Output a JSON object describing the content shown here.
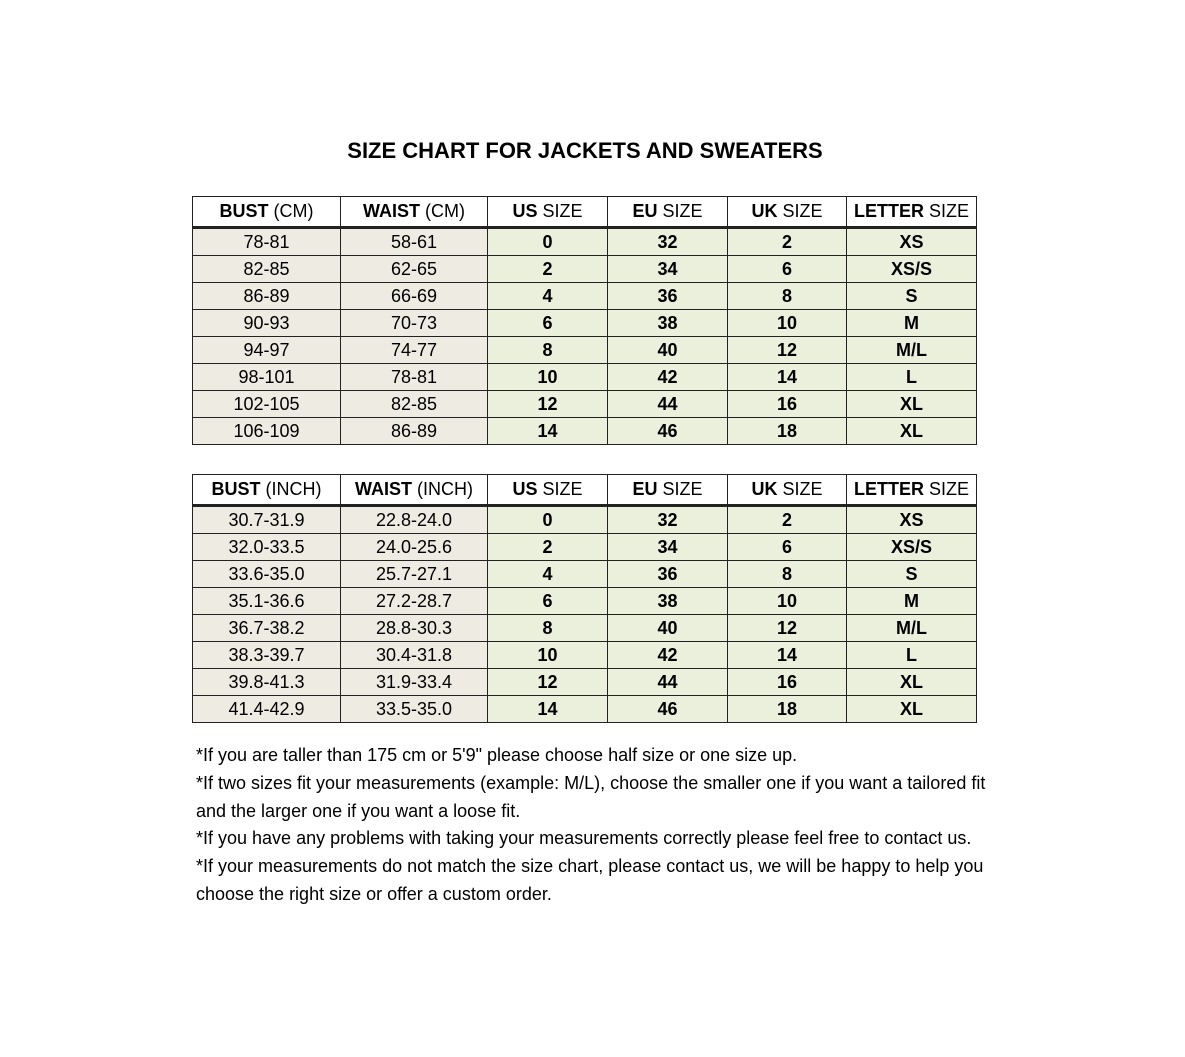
{
  "title": "SIZE CHART FOR JACKETS AND SWEATERS",
  "colors": {
    "measure_cell": "#eeebe2",
    "size_cell": "#ebf0dc"
  },
  "tables": [
    {
      "headers": [
        [
          "BUST",
          " (CM)"
        ],
        [
          "WAIST",
          " (CM)"
        ],
        [
          "US",
          " SIZE"
        ],
        [
          "EU",
          " SIZE"
        ],
        [
          "UK",
          " SIZE"
        ],
        [
          "LETTER",
          " SIZE"
        ]
      ],
      "rows": [
        [
          "78-81",
          "58-61",
          "0",
          "32",
          "2",
          "XS"
        ],
        [
          "82-85",
          "62-65",
          "2",
          "34",
          "6",
          "XS/S"
        ],
        [
          "86-89",
          "66-69",
          "4",
          "36",
          "8",
          "S"
        ],
        [
          "90-93",
          "70-73",
          "6",
          "38",
          "10",
          "M"
        ],
        [
          "94-97",
          "74-77",
          "8",
          "40",
          "12",
          "M/L"
        ],
        [
          "98-101",
          "78-81",
          "10",
          "42",
          "14",
          "L"
        ],
        [
          "102-105",
          "82-85",
          "12",
          "44",
          "16",
          "XL"
        ],
        [
          "106-109",
          "86-89",
          "14",
          "46",
          "18",
          "XL"
        ]
      ]
    },
    {
      "headers": [
        [
          "BUST",
          " (INCH)"
        ],
        [
          "WAIST",
          " (INCH)"
        ],
        [
          "US",
          " SIZE"
        ],
        [
          "EU",
          " SIZE"
        ],
        [
          "UK",
          " SIZE"
        ],
        [
          "LETTER",
          " SIZE"
        ]
      ],
      "rows": [
        [
          "30.7-31.9",
          "22.8-24.0",
          "0",
          "32",
          "2",
          "XS"
        ],
        [
          "32.0-33.5",
          "24.0-25.6",
          "2",
          "34",
          "6",
          "XS/S"
        ],
        [
          "33.6-35.0",
          "25.7-27.1",
          "4",
          "36",
          "8",
          "S"
        ],
        [
          "35.1-36.6",
          "27.2-28.7",
          "6",
          "38",
          "10",
          "M"
        ],
        [
          "36.7-38.2",
          "28.8-30.3",
          "8",
          "40",
          "12",
          "M/L"
        ],
        [
          "38.3-39.7",
          "30.4-31.8",
          "10",
          "42",
          "14",
          "L"
        ],
        [
          "39.8-41.3",
          "31.9-33.4",
          "12",
          "44",
          "16",
          "XL"
        ],
        [
          "41.4-42.9",
          "33.5-35.0",
          "14",
          "46",
          "18",
          "XL"
        ]
      ]
    }
  ],
  "notes": [
    "*If you are taller than 175 cm or 5'9\" please choose half size or one size up.",
    "*If two sizes fit your measurements (example: M/L), choose the smaller one if you want a tailored fit and the larger one if you want a loose fit.",
    "*If you have any problems with taking your measurements correctly please feel free to contact us.",
    "*If your measurements do not match the size chart, please contact us, we will be happy to help you choose the right size or offer a custom order."
  ]
}
